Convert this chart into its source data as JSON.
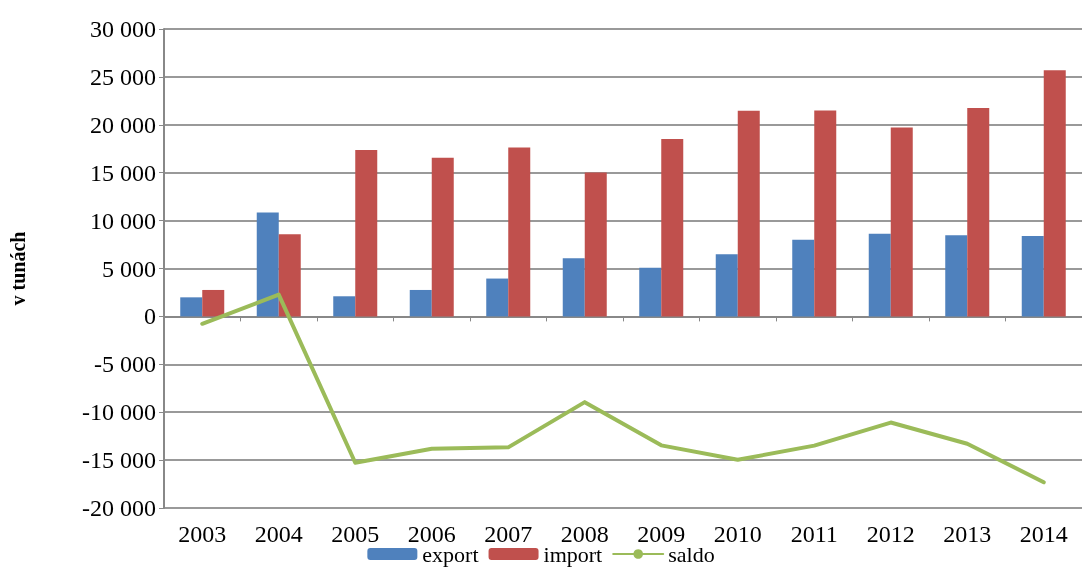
{
  "chart_data": {
    "type": "bar",
    "ylabel": "v tunách",
    "categories": [
      "2003",
      "2004",
      "2005",
      "2006",
      "2007",
      "2008",
      "2009",
      "2010",
      "2011",
      "2012",
      "2013",
      "2014"
    ],
    "series": [
      {
        "name": "export",
        "color": "#4f81bd",
        "values": [
          1990,
          10840,
          2100,
          2760,
          3950,
          6080,
          5070,
          6500,
          8010,
          8640,
          8460,
          8390
        ]
      },
      {
        "name": "import",
        "color": "#c0504d",
        "values": [
          2760,
          8570,
          17380,
          16570,
          17620,
          15030,
          18530,
          21470,
          21500,
          19720,
          21750,
          25700
        ]
      },
      {
        "name": "saldo",
        "type": "line",
        "color": "#9bbb59",
        "values": [
          -770,
          2270,
          -15280,
          -13810,
          -13670,
          -8950,
          -13460,
          -14970,
          -13490,
          -11080,
          -13290,
          -17310
        ]
      }
    ],
    "ylim": [
      -20000,
      30000
    ],
    "yticks": [
      {
        "value": -20000,
        "label": "-20 000"
      },
      {
        "value": -15000,
        "label": "-15 000"
      },
      {
        "value": -10000,
        "label": "-10 000"
      },
      {
        "value": -5000,
        "label": "-5 000"
      },
      0,
      {
        "value": 5000,
        "label": "5 000"
      },
      {
        "value": 10000,
        "label": "10 000"
      },
      {
        "value": 15000,
        "label": "15 000"
      },
      {
        "value": 20000,
        "label": "20 000"
      },
      {
        "value": 25000,
        "label": "25 000"
      },
      {
        "value": 30000,
        "label": "30 000"
      }
    ],
    "grid": "y",
    "legend": "bottom",
    "marker": "none",
    "line_style": "solid"
  }
}
